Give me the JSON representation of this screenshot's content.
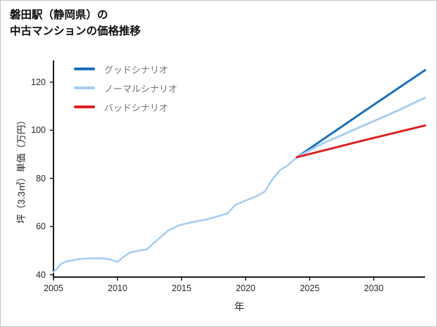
{
  "page": {
    "title_line1": "磐田駅（静岡県）の",
    "title_line2": "中古マンションの価格推移"
  },
  "chart_data": {
    "type": "line",
    "title": "磐田駅（静岡県）の中古マンションの価格推移",
    "xlabel": "年",
    "ylabel": "坪（3.3㎡）単価（万円）",
    "xlim": [
      2005,
      2034
    ],
    "ylim": [
      39,
      129
    ],
    "x_ticks": [
      2005,
      2010,
      2015,
      2020,
      2025,
      2030
    ],
    "y_ticks": [
      40,
      60,
      80,
      100,
      120
    ],
    "grid": false,
    "legend_position": "top-left",
    "axis_color": "#1a1a1a",
    "history": {
      "color": "#a8cef1",
      "x": [
        2005,
        2005.6,
        2006,
        2007,
        2008,
        2008.7,
        2009.3,
        2010,
        2010.5,
        2011,
        2011.7,
        2012.3,
        2013,
        2014,
        2014.6,
        2015,
        2016,
        2017,
        2018,
        2018.6,
        2019.2,
        2020,
        2020.8,
        2021.5,
        2022,
        2022.7,
        2023.3,
        2024
      ],
      "y": [
        41,
        44.5,
        45.5,
        46.5,
        46.8,
        46.8,
        46.5,
        45.3,
        47.5,
        49.3,
        50,
        50.5,
        54,
        58.5,
        60,
        60.8,
        62,
        63,
        64.5,
        65.5,
        69,
        70.8,
        72.5,
        74.5,
        79,
        83.5,
        85.5,
        88.8
      ]
    },
    "series": [
      {
        "name": "グッドシナリオ",
        "color": "#1a70b8",
        "x": [
          2024,
          2029,
          2034
        ],
        "y": [
          88.8,
          107,
          125
        ]
      },
      {
        "name": "ノーマルシナリオ",
        "color": "#a8cef1",
        "x": [
          2024,
          2026,
          2029,
          2032,
          2034
        ],
        "y": [
          88.8,
          94.5,
          101.5,
          108.5,
          113.5
        ]
      },
      {
        "name": "バッドシナリオ",
        "color": "#dc2020",
        "x": [
          2024,
          2029,
          2034
        ],
        "y": [
          88.8,
          95.5,
          102
        ]
      }
    ]
  }
}
